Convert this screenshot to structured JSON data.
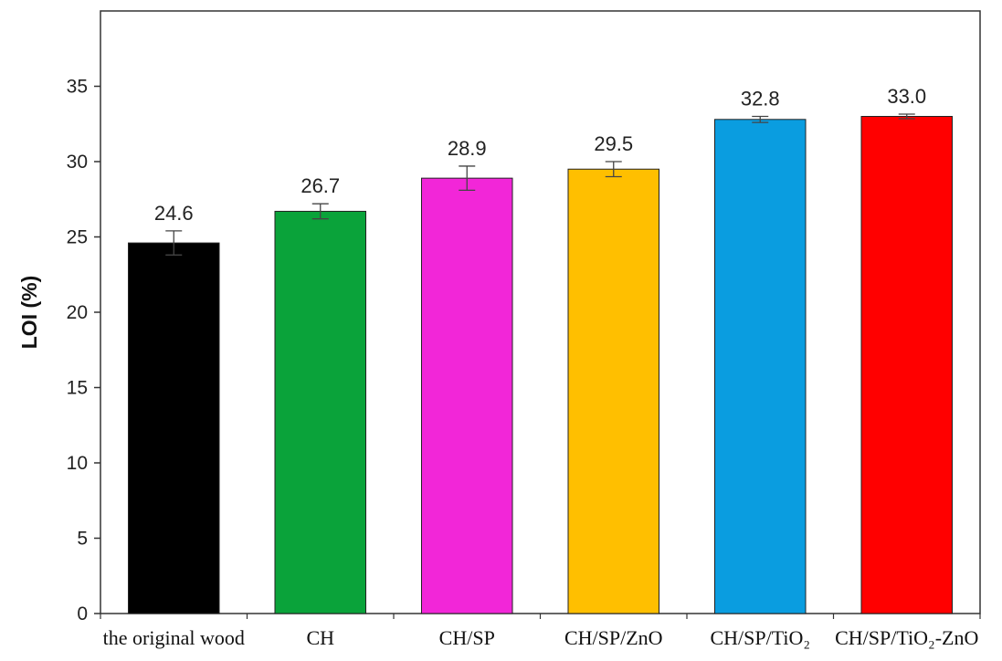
{
  "chart_data": {
    "type": "bar",
    "title": "",
    "xlabel": "",
    "ylabel": "LOI (%)",
    "ylim": [
      0,
      40
    ],
    "yticks": [
      0,
      5,
      10,
      15,
      20,
      25,
      30,
      35
    ],
    "grid": false,
    "legend": "none",
    "categories": [
      "the original wood",
      "CH",
      "CH/SP",
      "CH/SP/ZnO",
      "CH/SP/TiO₂",
      "CH/SP/TiO₂-ZnO"
    ],
    "values": [
      24.6,
      26.7,
      28.9,
      29.5,
      32.8,
      33.0
    ],
    "data_labels": [
      "24.6",
      "26.7",
      "28.9",
      "29.5",
      "32.8",
      "33.0"
    ],
    "errors": [
      0.8,
      0.5,
      0.8,
      0.5,
      0.2,
      0.15
    ],
    "colors": [
      "#000000",
      "#0aa33a",
      "#f226d8",
      "#ffbf00",
      "#0a9de0",
      "#ff0000"
    ]
  }
}
